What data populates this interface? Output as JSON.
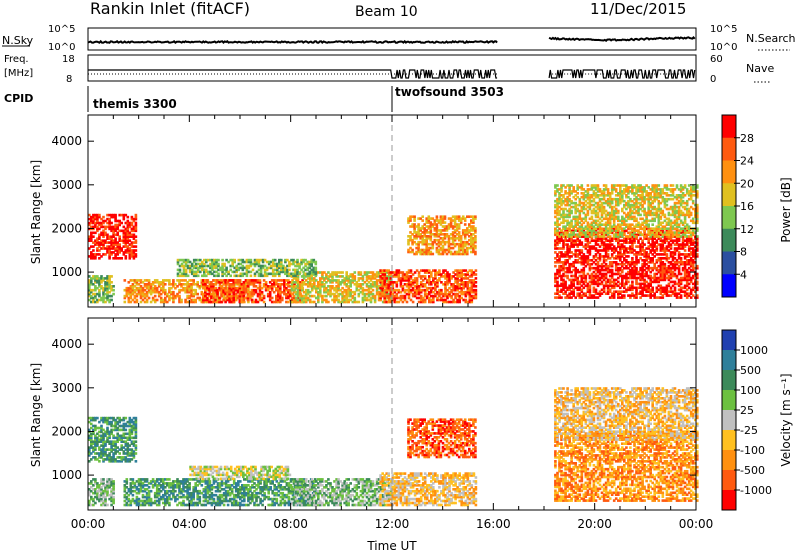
{
  "header": {
    "title": "Rankin Inlet (fitACF)",
    "beam": "Beam 10",
    "date": "11/Dec/2015"
  },
  "panels": {
    "nsky": {
      "left_label": "N.Sky",
      "left_ticks": [
        "10^5",
        "10^0"
      ],
      "right_ticks": [
        "10^5",
        "10^0"
      ],
      "right_label": "N.Search"
    },
    "freq": {
      "left_label_1": "Freq.",
      "left_label_2": "[MHz]",
      "left_ticks": [
        "18",
        "8"
      ],
      "right_ticks": [
        "60",
        "0"
      ],
      "right_label": "Nave"
    },
    "cpid": {
      "label": "CPID",
      "modes": [
        {
          "name": "themis 3300",
          "start_hour": 0
        },
        {
          "name": "twofsound 3503",
          "start_hour": 12
        }
      ]
    }
  },
  "chart_data": [
    {
      "type": "heatmap",
      "name": "power",
      "xlabel": "",
      "ylabel": "Slant Range [km]",
      "xlim": [
        0,
        24
      ],
      "ylim": [
        200,
        4600
      ],
      "y_ticks": [
        1000,
        2000,
        3000,
        4000
      ],
      "x_ticks": [
        "00:00",
        "04:00",
        "08:00",
        "12:00",
        "16:00",
        "20:00",
        "00:00"
      ],
      "colorbar_label": "Power [dB]",
      "colorbar_ticks": [
        "4",
        "8",
        "12",
        "16",
        "20",
        "24",
        "28"
      ],
      "colors": [
        "#0000ff",
        "#2b4fa0",
        "#3c8a5a",
        "#7ec850",
        "#e0c020",
        "#ff9010",
        "#ff5a10",
        "#ff0000"
      ],
      "data_gaps_hours": [
        [
          16.2,
          18.2
        ]
      ],
      "regions": [
        {
          "t": [
            0.0,
            1.9
          ],
          "r": [
            1300,
            2300
          ],
          "level": 7
        },
        {
          "t": [
            1.4,
            6.5
          ],
          "r": [
            300,
            800
          ],
          "level": 5
        },
        {
          "t": [
            4.5,
            8.5
          ],
          "r": [
            300,
            800
          ],
          "level": 6
        },
        {
          "t": [
            8.0,
            12.0
          ],
          "r": [
            300,
            1000
          ],
          "level": 4
        },
        {
          "t": [
            11.5,
            15.3
          ],
          "r": [
            300,
            1050
          ],
          "level": 6
        },
        {
          "t": [
            12.6,
            15.3
          ],
          "r": [
            1400,
            2300
          ],
          "level": 5
        },
        {
          "t": [
            18.4,
            24.0
          ],
          "r": [
            400,
            2000
          ],
          "level": 7
        },
        {
          "t": [
            18.4,
            24.0
          ],
          "r": [
            1800,
            3000
          ],
          "level": 4
        },
        {
          "t": [
            0.0,
            1.0
          ],
          "r": [
            300,
            900
          ],
          "level": 3
        },
        {
          "t": [
            3.5,
            9.0
          ],
          "r": [
            900,
            1300
          ],
          "level": 3
        }
      ]
    },
    {
      "type": "heatmap",
      "name": "velocity",
      "xlabel": "Time UT",
      "ylabel": "Slant Range [km]",
      "xlim": [
        0,
        24
      ],
      "ylim": [
        200,
        4600
      ],
      "y_ticks": [
        1000,
        2000,
        3000,
        4000
      ],
      "x_ticks": [
        "00:00",
        "04:00",
        "08:00",
        "12:00",
        "16:00",
        "20:00",
        "00:00"
      ],
      "colorbar_label": "Velocity [m s⁻¹]",
      "colorbar_ticks": [
        "1000",
        "500",
        "100",
        "25",
        "-25",
        "-100",
        "-500",
        "-1000"
      ],
      "colors": [
        "#2040b0",
        "#2f7f9a",
        "#3c8a5a",
        "#6cc040",
        "#c0c0c0",
        "#ffc020",
        "#ff9010",
        "#ff5a10",
        "#ff0000"
      ],
      "data_gaps_hours": [
        [
          16.2,
          18.2
        ]
      ],
      "regions": [
        {
          "t": [
            0.0,
            1.9
          ],
          "r": [
            1300,
            2300
          ],
          "level": 2
        },
        {
          "t": [
            1.4,
            9.0
          ],
          "r": [
            300,
            900
          ],
          "level": 2
        },
        {
          "t": [
            4.0,
            8.0
          ],
          "r": [
            900,
            1200
          ],
          "level": 4
        },
        {
          "t": [
            8.0,
            12.0
          ],
          "r": [
            300,
            900
          ],
          "level": 3
        },
        {
          "t": [
            11.5,
            15.3
          ],
          "r": [
            300,
            1050
          ],
          "level": 5
        },
        {
          "t": [
            12.6,
            15.3
          ],
          "r": [
            1400,
            2300
          ],
          "level": 7
        },
        {
          "t": [
            18.4,
            24.0
          ],
          "r": [
            400,
            2000
          ],
          "level": 6
        },
        {
          "t": [
            18.4,
            24.0
          ],
          "r": [
            1800,
            3000
          ],
          "level": 5
        },
        {
          "t": [
            0.0,
            1.0
          ],
          "r": [
            300,
            900
          ],
          "level": 3
        }
      ]
    }
  ]
}
